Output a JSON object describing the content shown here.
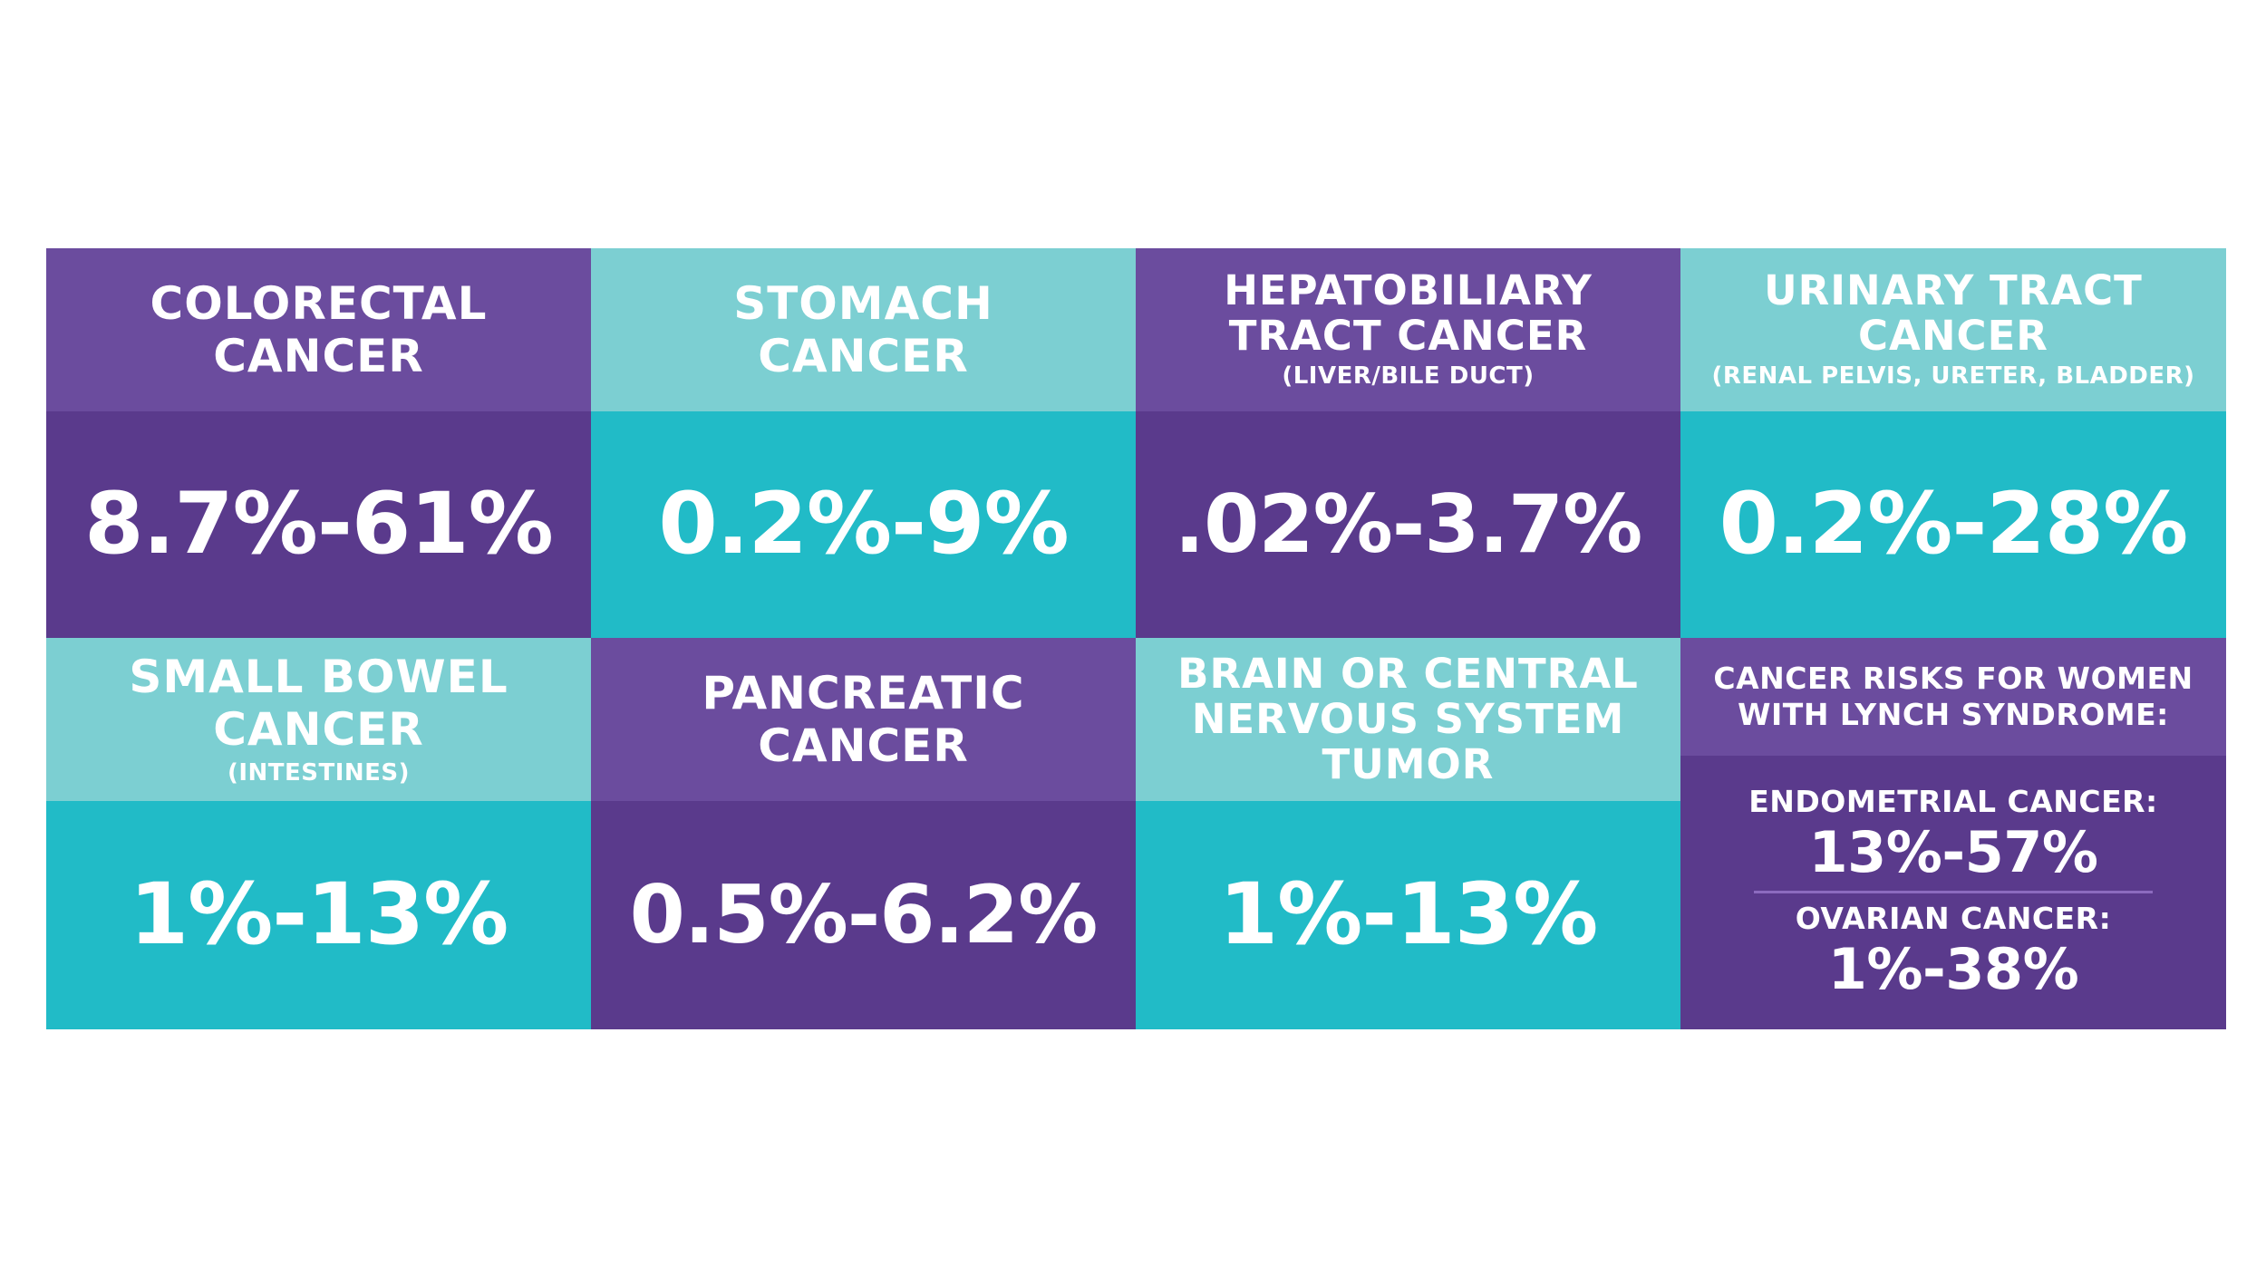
{
  "colors": {
    "purple_light": "#6b4c9e",
    "purple_dark": "#5a3a8c",
    "teal_light": "#7ccfd2",
    "teal_dark": "#21bbc7",
    "text": "#ffffff"
  },
  "cancers": {
    "colorectal": {
      "label_line1": "COLORECTAL",
      "label_line2": "CANCER",
      "value": "8.7%-61%"
    },
    "stomach": {
      "label_line1": "STOMACH",
      "label_line2": "CANCER",
      "value": "0.2%-9%"
    },
    "hepatobiliary": {
      "label_line1": "HEPATOBILIARY",
      "label_line2": "TRACT CANCER",
      "sublabel": "(LIVER/BILE DUCT)",
      "value": ".02%-3.7%"
    },
    "urinary": {
      "label_line1": "URINARY TRACT",
      "label_line2": "CANCER",
      "sublabel": "(RENAL PELVIS, URETER, BLADDER)",
      "value": "0.2%-28%"
    },
    "small_bowel": {
      "label_line1": "SMALL BOWEL",
      "label_line2": "CANCER",
      "sublabel": "(INTESTINES)",
      "value": "1%-13%"
    },
    "pancreatic": {
      "label_line1": "PANCREATIC",
      "label_line2": "CANCER",
      "value": "0.5%-6.2%"
    },
    "brain": {
      "label_line1": "BRAIN OR CENTRAL",
      "label_line2": "NERVOUS SYSTEM",
      "label_line3": "TUMOR",
      "value": "1%-13%"
    }
  },
  "women": {
    "header_line1": "CANCER RISKS FOR WOMEN",
    "header_line2": "WITH LYNCH SYNDROME:",
    "endometrial_label": "ENDOMETRIAL CANCER:",
    "endometrial_value": "13%-57%",
    "ovarian_label": "OVARIAN CANCER:",
    "ovarian_value": "1%-38%"
  }
}
